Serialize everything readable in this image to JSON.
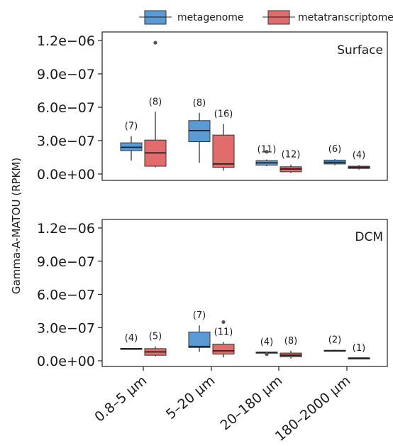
{
  "chart_data": {
    "type": "boxplot",
    "ylabel": "Gamma-A-MATOU (RPKM)",
    "categories": [
      "0.8–5 µm",
      "5–20 µm",
      "20–180 µm",
      "180–2000 µm"
    ],
    "yticks": [
      "0.0e+00",
      "3.0e−07",
      "6.0e−07",
      "9.0e−07",
      "1.2e−06"
    ],
    "ylim": [
      0,
      1.2e-06
    ],
    "legend": {
      "position": "top",
      "entries": [
        {
          "name": "metagenome",
          "color": "#5b9bd5"
        },
        {
          "name": "metatranscriptome",
          "color": "#e06c6c"
        }
      ]
    },
    "panels": [
      {
        "label": "Surface",
        "boxes": [
          {
            "category": 0,
            "series": 0,
            "count": "(7)",
            "min": 1.2e-07,
            "q1": 2.1e-07,
            "median": 2.4e-07,
            "q3": 2.8e-07,
            "max": 3.4e-07,
            "outliers": []
          },
          {
            "category": 0,
            "series": 1,
            "count": "(8)",
            "min": 6e-08,
            "q1": 7e-08,
            "median": 1.9e-07,
            "q3": 3.05e-07,
            "max": 5.6e-07,
            "outliers": [
              1.18e-06
            ]
          },
          {
            "category": 1,
            "series": 0,
            "count": "(8)",
            "min": 1e-07,
            "q1": 2.9e-07,
            "median": 3.9e-07,
            "q3": 4.8e-07,
            "max": 5.5e-07,
            "outliers": []
          },
          {
            "category": 1,
            "series": 1,
            "count": "(16)",
            "min": 3e-08,
            "q1": 6e-08,
            "median": 9e-08,
            "q3": 3.5e-07,
            "max": 4.5e-07,
            "outliers": []
          },
          {
            "category": 2,
            "series": 0,
            "count": "(11)",
            "min": 7e-08,
            "q1": 8e-08,
            "median": 1e-07,
            "q3": 1.2e-07,
            "max": 1.3e-07,
            "outliers": [
              2e-07
            ]
          },
          {
            "category": 2,
            "series": 1,
            "count": "(12)",
            "min": 1e-08,
            "q1": 2e-08,
            "median": 4.5e-08,
            "q3": 6.5e-08,
            "max": 8.5e-08,
            "outliers": []
          },
          {
            "category": 3,
            "series": 0,
            "count": "(6)",
            "min": 8e-08,
            "q1": 9e-08,
            "median": 1.05e-07,
            "q3": 1.25e-07,
            "max": 1.35e-07,
            "outliers": []
          },
          {
            "category": 3,
            "series": 1,
            "count": "(4)",
            "min": 4e-08,
            "q1": 5e-08,
            "median": 6e-08,
            "q3": 7e-08,
            "max": 8e-08,
            "outliers": []
          }
        ]
      },
      {
        "label": "DCM",
        "boxes": [
          {
            "category": 0,
            "series": 0,
            "count": "(4)",
            "min": 1.05e-07,
            "q1": 1.08e-07,
            "median": 1.1e-07,
            "q3": 1.12e-07,
            "max": 1.15e-07,
            "outliers": []
          },
          {
            "category": 0,
            "series": 1,
            "count": "(5)",
            "min": 4e-08,
            "q1": 5e-08,
            "median": 8e-08,
            "q3": 1.1e-07,
            "max": 1.3e-07,
            "outliers": []
          },
          {
            "category": 1,
            "series": 0,
            "count": "(7)",
            "min": 8e-08,
            "q1": 1.2e-07,
            "median": 1.3e-07,
            "q3": 2.6e-07,
            "max": 3.2e-07,
            "outliers": []
          },
          {
            "category": 1,
            "series": 1,
            "count": "(11)",
            "min": 3e-08,
            "q1": 6e-08,
            "median": 9e-08,
            "q3": 1.5e-07,
            "max": 1.7e-07,
            "outliers": [
              3.5e-07
            ]
          },
          {
            "category": 2,
            "series": 0,
            "count": "(4)",
            "min": 7e-08,
            "q1": 7.2e-08,
            "median": 7.5e-08,
            "q3": 7.8e-08,
            "max": 8e-08,
            "outliers": [
              6e-08
            ]
          },
          {
            "category": 2,
            "series": 1,
            "count": "(8)",
            "min": 2e-08,
            "q1": 3.5e-08,
            "median": 5e-08,
            "q3": 7e-08,
            "max": 9e-08,
            "outliers": []
          },
          {
            "category": 3,
            "series": 0,
            "count": "(2)",
            "min": 8.5e-08,
            "q1": 8.8e-08,
            "median": 9e-08,
            "q3": 9.5e-08,
            "max": 1e-07,
            "outliers": []
          },
          {
            "category": 3,
            "series": 1,
            "count": "(1)",
            "min": 2.5e-08,
            "q1": 2.5e-08,
            "median": 2.5e-08,
            "q3": 2.5e-08,
            "max": 2.5e-08,
            "outliers": []
          }
        ]
      }
    ]
  }
}
